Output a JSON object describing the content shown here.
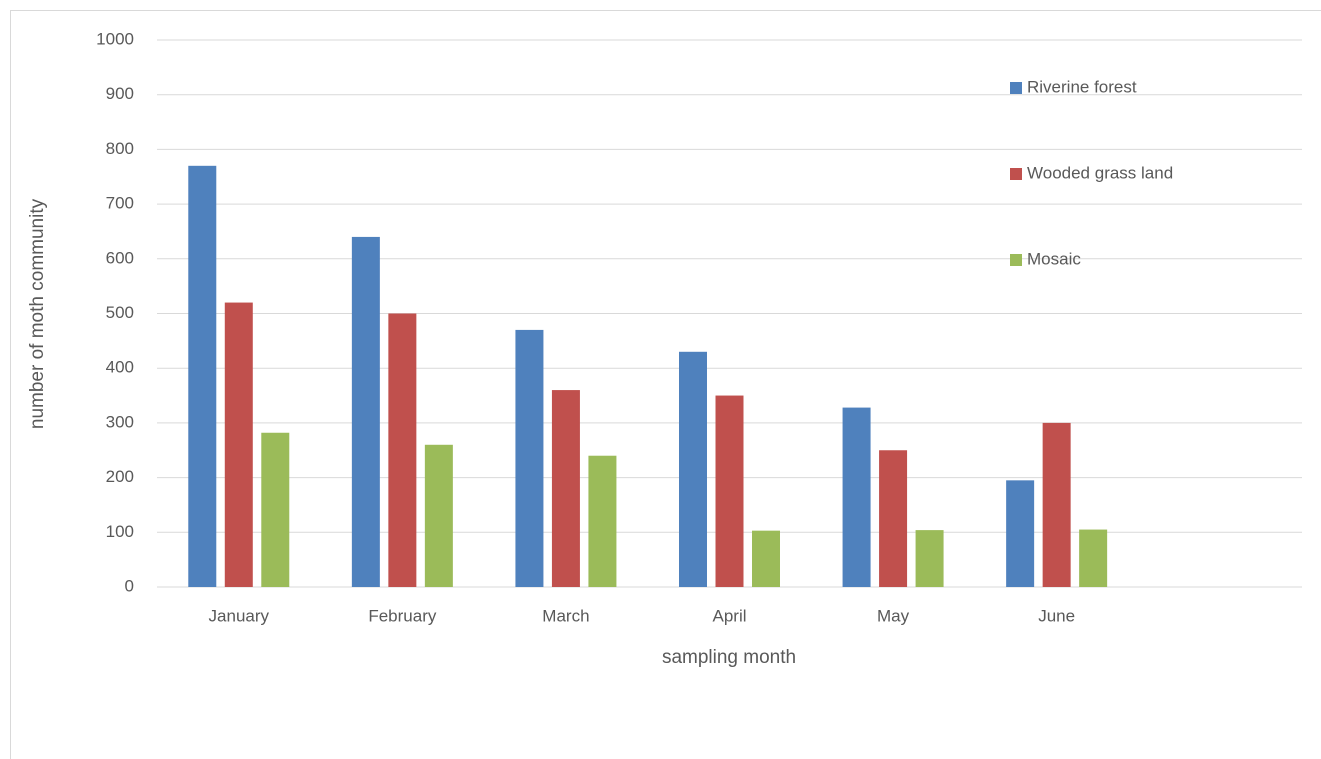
{
  "chart_data": {
    "type": "bar",
    "x_label": "sampling month",
    "y_label": "number of moth community",
    "categories": [
      "January",
      "February",
      "March",
      "April",
      "May",
      "June",
      null
    ],
    "series": [
      {
        "name": "Riverine forest",
        "color": "#4f81bd",
        "values": [
          770,
          640,
          470,
          430,
          328,
          195,
          null
        ]
      },
      {
        "name": "Wooded grass land",
        "color": "#c0504d",
        "values": [
          520,
          500,
          360,
          350,
          250,
          300,
          null
        ]
      },
      {
        "name": "Mosaic",
        "color": "#9bbb59",
        "values": [
          282,
          260,
          240,
          103,
          104,
          105,
          null
        ]
      }
    ],
    "ylim": [
      0,
      1000
    ],
    "yticks": [
      0,
      100,
      200,
      300,
      400,
      500,
      600,
      700,
      800,
      900,
      1000
    ],
    "grid": true,
    "legend": "right"
  }
}
